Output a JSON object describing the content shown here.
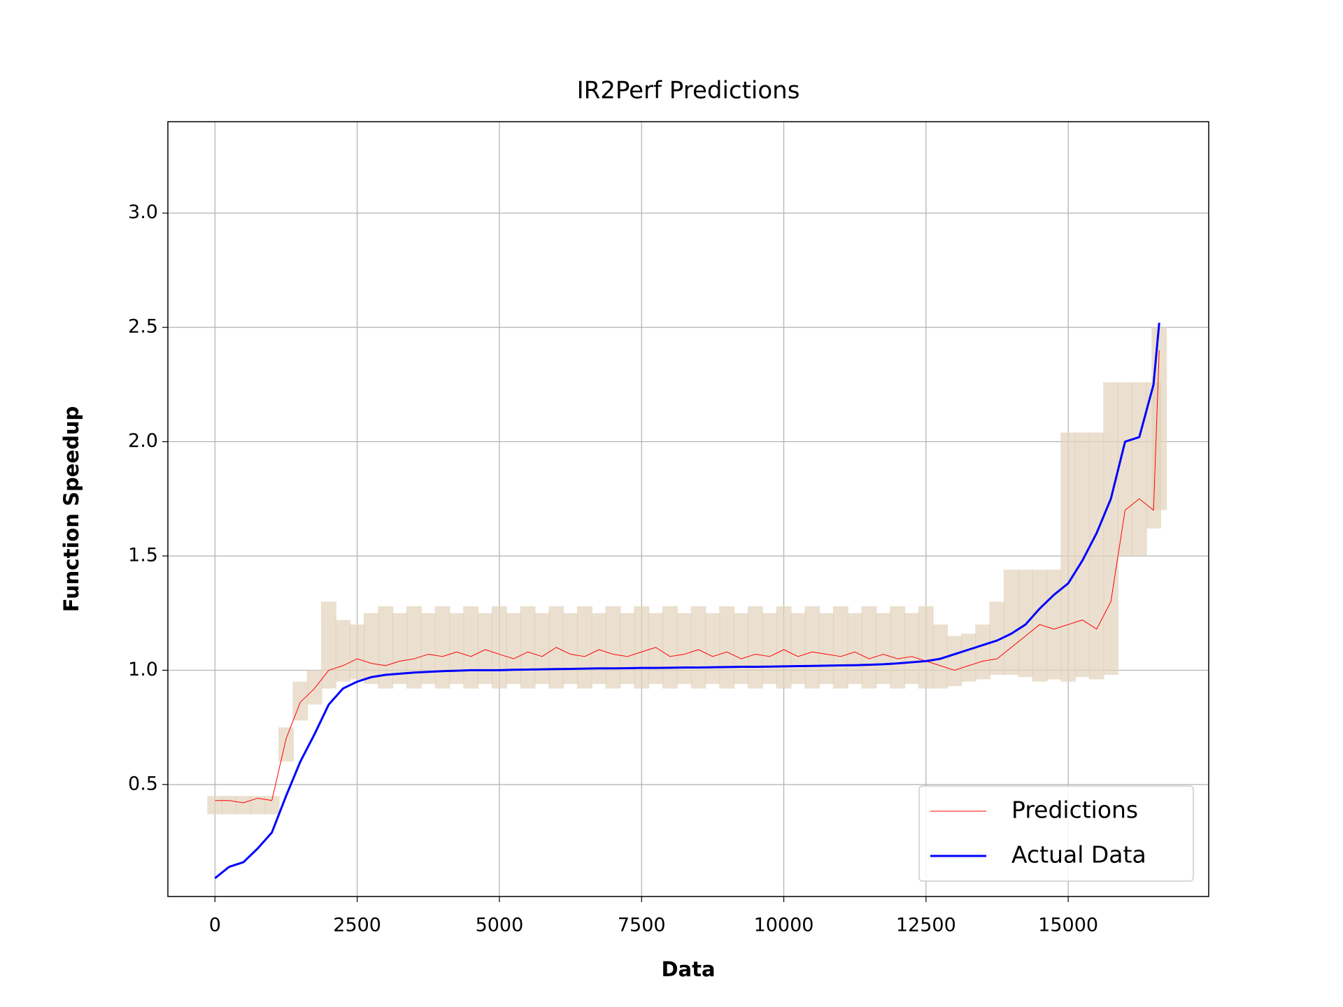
{
  "chart_data": {
    "type": "line",
    "title": "IR2Perf Predictions",
    "x_label": "Data",
    "y_label": "Function Speedup",
    "x": [
      0,
      250,
      500,
      750,
      1000,
      1250,
      1500,
      1750,
      2000,
      2250,
      2500,
      2750,
      3000,
      3250,
      3500,
      3750,
      4000,
      4250,
      4500,
      4750,
      5000,
      5250,
      5500,
      5750,
      6000,
      6250,
      6500,
      6750,
      7000,
      7250,
      7500,
      7750,
      8000,
      8250,
      8500,
      8750,
      9000,
      9250,
      9500,
      9750,
      10000,
      10250,
      10500,
      10750,
      11000,
      11250,
      11500,
      11750,
      12000,
      12250,
      12500,
      12750,
      13000,
      13250,
      13500,
      13750,
      14000,
      14250,
      14500,
      14750,
      15000,
      15250,
      15500,
      15750,
      16000,
      16250,
      16500,
      16600
    ],
    "series": [
      {
        "name": "Predictions",
        "color": "#ff0000",
        "width": 1,
        "values": [
          0.43,
          0.43,
          0.42,
          0.44,
          0.43,
          0.7,
          0.86,
          0.92,
          1.0,
          1.02,
          1.05,
          1.03,
          1.02,
          1.04,
          1.05,
          1.07,
          1.06,
          1.08,
          1.06,
          1.09,
          1.07,
          1.05,
          1.08,
          1.06,
          1.1,
          1.07,
          1.06,
          1.09,
          1.07,
          1.06,
          1.08,
          1.1,
          1.06,
          1.07,
          1.09,
          1.06,
          1.08,
          1.05,
          1.07,
          1.06,
          1.09,
          1.06,
          1.08,
          1.07,
          1.06,
          1.08,
          1.05,
          1.07,
          1.05,
          1.06,
          1.04,
          1.02,
          1.0,
          1.02,
          1.04,
          1.05,
          1.1,
          1.15,
          1.2,
          1.18,
          1.2,
          1.22,
          1.18,
          1.3,
          1.7,
          1.75,
          1.7,
          2.4
        ]
      },
      {
        "name": "Actual Data",
        "color": "#0000ff",
        "width": 3,
        "values": [
          0.09,
          0.14,
          0.16,
          0.22,
          0.29,
          0.45,
          0.6,
          0.72,
          0.85,
          0.92,
          0.95,
          0.97,
          0.98,
          0.985,
          0.99,
          0.993,
          0.996,
          0.998,
          1.0,
          1.0,
          1.0,
          1.002,
          1.003,
          1.004,
          1.005,
          1.006,
          1.007,
          1.008,
          1.008,
          1.009,
          1.01,
          1.01,
          1.011,
          1.012,
          1.012,
          1.013,
          1.014,
          1.015,
          1.015,
          1.016,
          1.017,
          1.018,
          1.019,
          1.02,
          1.021,
          1.022,
          1.024,
          1.026,
          1.03,
          1.035,
          1.04,
          1.05,
          1.07,
          1.09,
          1.11,
          1.13,
          1.16,
          1.2,
          1.27,
          1.33,
          1.38,
          1.48,
          1.6,
          1.75,
          2.0,
          2.02,
          2.25,
          2.52
        ]
      }
    ],
    "band": {
      "color": "#e3d3bd",
      "lower": [
        0.37,
        0.37,
        0.37,
        0.37,
        0.37,
        0.6,
        0.78,
        0.85,
        0.92,
        0.95,
        0.96,
        0.94,
        0.92,
        0.94,
        0.92,
        0.94,
        0.92,
        0.94,
        0.92,
        0.94,
        0.92,
        0.94,
        0.92,
        0.94,
        0.92,
        0.94,
        0.92,
        0.94,
        0.92,
        0.94,
        0.92,
        0.94,
        0.92,
        0.94,
        0.92,
        0.94,
        0.92,
        0.94,
        0.92,
        0.94,
        0.92,
        0.94,
        0.92,
        0.94,
        0.92,
        0.94,
        0.92,
        0.94,
        0.92,
        0.94,
        0.92,
        0.92,
        0.93,
        0.95,
        0.96,
        0.98,
        0.98,
        0.97,
        0.95,
        0.96,
        0.95,
        0.97,
        0.96,
        0.98,
        1.5,
        1.5,
        1.62,
        1.7
      ],
      "upper": [
        0.45,
        0.45,
        0.45,
        0.45,
        0.45,
        0.75,
        0.95,
        1.0,
        1.3,
        1.22,
        1.2,
        1.25,
        1.28,
        1.25,
        1.28,
        1.25,
        1.28,
        1.25,
        1.28,
        1.25,
        1.28,
        1.25,
        1.28,
        1.25,
        1.28,
        1.25,
        1.28,
        1.25,
        1.28,
        1.25,
        1.28,
        1.25,
        1.28,
        1.25,
        1.28,
        1.25,
        1.28,
        1.25,
        1.28,
        1.25,
        1.28,
        1.25,
        1.28,
        1.25,
        1.28,
        1.25,
        1.28,
        1.25,
        1.28,
        1.25,
        1.28,
        1.2,
        1.15,
        1.16,
        1.2,
        1.3,
        1.44,
        1.44,
        1.44,
        1.44,
        2.04,
        2.04,
        2.04,
        2.26,
        2.26,
        2.26,
        2.26,
        2.5
      ]
    },
    "xlim": [
      -828,
      17470
    ],
    "ylim": [
      0.01,
      3.4
    ],
    "xticks": [
      0,
      2500,
      5000,
      7500,
      10000,
      12500,
      15000
    ],
    "yticks": [
      0.5,
      {
        "value": 1,
        "label": "1.0"
      },
      1.5,
      {
        "value": 2,
        "label": "2.0"
      },
      2.5,
      {
        "value": 3,
        "label": "3.0"
      }
    ],
    "grid": true,
    "legend": "lower right"
  }
}
